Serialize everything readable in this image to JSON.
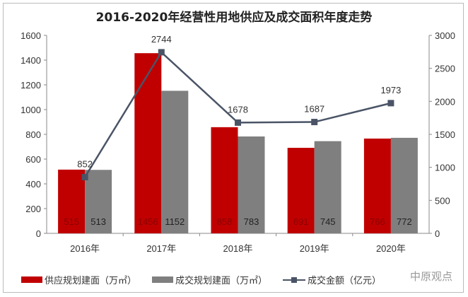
{
  "chart_data": {
    "type": "bar+line",
    "title": "2016-2020年经营性用地供应及成交面积年度走势",
    "categories": [
      "2016年",
      "2017年",
      "2018年",
      "2019年",
      "2020年"
    ],
    "series": [
      {
        "name": "供应规划建面（万㎡）",
        "type": "bar",
        "axis": "left",
        "color": "#c00000",
        "values": [
          515,
          1456,
          858,
          691,
          766
        ]
      },
      {
        "name": "成交规划建面（万㎡）",
        "type": "bar",
        "axis": "left",
        "color": "#7f7f7f",
        "values": [
          513,
          1152,
          783,
          745,
          772
        ]
      },
      {
        "name": "成交金额（亿元）",
        "type": "line",
        "axis": "right",
        "color": "#4a5466",
        "values": [
          852,
          2744,
          1678,
          1687,
          1973
        ]
      }
    ],
    "ylim_left": [
      0,
      1600
    ],
    "yticks_left": [
      0,
      200,
      400,
      600,
      800,
      1000,
      1200,
      1400,
      1600
    ],
    "ylim_right": [
      0,
      3000
    ],
    "yticks_right": [
      0,
      500,
      1000,
      1500,
      2000,
      2500,
      3000
    ],
    "grid": false,
    "legend": "bottom"
  },
  "watermark": "中原观点"
}
